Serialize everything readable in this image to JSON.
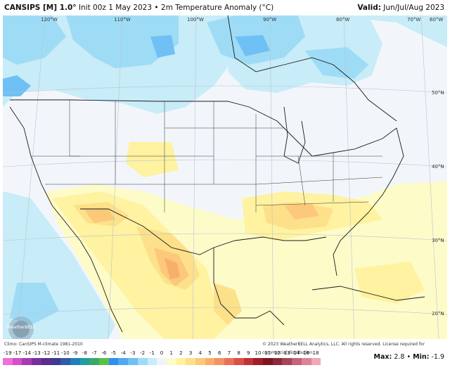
{
  "header": {
    "model": "CANSIPS [M] 1.0°",
    "init": "Init 00z 1 May 2023",
    "separator": "•",
    "field": "2m Temperature Anomaly (°C)",
    "valid_label": "Valid:",
    "valid_value": "Jun/Jul/Aug 2023"
  },
  "map": {
    "longitude_labels": [
      "120°W",
      "110°W",
      "100°W",
      "90°W",
      "80°W",
      "70°W",
      "60°W"
    ],
    "latitude_labels": [
      "50°N",
      "40°N",
      "30°N",
      "20°N"
    ],
    "logo_text": "WeatherBELL"
  },
  "credits": {
    "climo": "Climo: CanSIPS M-climate 1981-2010",
    "copyright": "© 2023 WeatherBELL Analytics, LLC. All rights reserved. License required for commercial distribution."
  },
  "colorbar": {
    "labels": [
      "-19",
      "-17",
      "-14",
      "-13",
      "-12",
      "-11",
      "-10",
      "-9",
      "-8",
      "-7",
      "-6",
      "-5",
      "-4",
      "-3",
      "-2",
      "-1",
      "0",
      "1",
      "2",
      "3",
      "4",
      "5",
      "6",
      "7",
      "8",
      "9",
      "10",
      "11",
      "12",
      "13",
      "14",
      "16",
      "18"
    ],
    "colors": [
      "#f06fdc",
      "#d44fc8",
      "#a63cb4",
      "#7a2e9e",
      "#5a2e8a",
      "#3c3a8e",
      "#2e5aa8",
      "#1f7fb8",
      "#1f9fa0",
      "#3aa86a",
      "#5cbf48",
      "#2e8ff0",
      "#4fa8f0",
      "#6fc0f4",
      "#9edcf6",
      "#c8ecf8",
      "#f0f4fa",
      "#fdfbc8",
      "#fff2a0",
      "#fde08a",
      "#fcc87a",
      "#f9ae6c",
      "#f39264",
      "#e97058",
      "#dc4e48",
      "#c23232",
      "#a01e2a",
      "#7e1420",
      "#8a2a3a",
      "#a84458",
      "#c4647a",
      "#dc8496",
      "#f0a8b4"
    ]
  },
  "stats": {
    "max_label": "Max:",
    "max_value": "2.8",
    "min_label": "Min:",
    "min_value": "-1.9"
  }
}
